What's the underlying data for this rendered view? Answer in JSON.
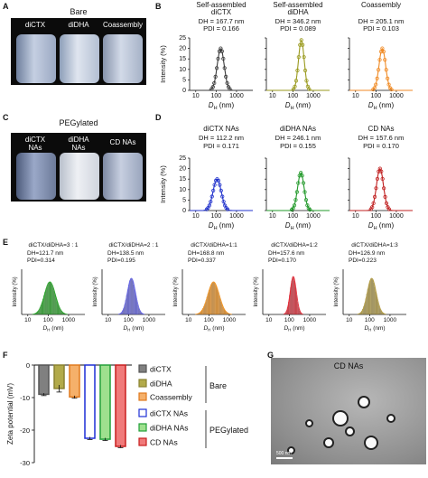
{
  "panels": {
    "A": {
      "letter": "A",
      "caption": "Bare",
      "vials": [
        "diCTX",
        "diDHA",
        "Coassembly"
      ]
    },
    "B": {
      "letter": "B",
      "xlabel_main": "D",
      "xlabel_sub": "H",
      "xlabel_unit": " (nm)",
      "ylabel": "Intensity (%)",
      "xticks": [
        "10",
        "100",
        "1000"
      ],
      "yticks": [
        "0",
        "5",
        "10",
        "15",
        "20",
        "25"
      ],
      "charts": [
        {
          "title1": "Self-assembled",
          "title2": "diCTX",
          "dh": "DH = 167.7 nm",
          "pdi": "PDI = 0.166",
          "color": "#3a3a3a",
          "peak_nm": 167.7,
          "peak_pct": 20,
          "log_sigma": 0.17
        },
        {
          "title1": "Self-assembled",
          "title2": "diDHA",
          "dh": "DH = 346.2 nm",
          "pdi": "PDI = 0.089",
          "color": "#9a9a1e",
          "peak_nm": 260,
          "peak_pct": 24,
          "log_sigma": 0.14
        },
        {
          "title1": "Coassembly",
          "title2": "",
          "dh": "DH = 205.1 nm",
          "pdi": "PDI = 0.103",
          "color": "#f08a24",
          "peak_nm": 205.1,
          "peak_pct": 20,
          "log_sigma": 0.16
        }
      ]
    },
    "C": {
      "letter": "C",
      "caption": "PEGylated",
      "vials": [
        "diCTX\nNAs",
        "diDHA\nNAs",
        "CD NAs"
      ]
    },
    "D": {
      "letter": "D",
      "xticks": [
        "10",
        "100",
        "1000"
      ],
      "yticks": [
        "0",
        "5",
        "10",
        "15",
        "20",
        "25"
      ],
      "charts": [
        {
          "title": "diCTX NAs",
          "dh": "DH = 112.2 nm",
          "pdi": "PDI = 0.171",
          "color": "#2233cc",
          "peak_nm": 112.2,
          "peak_pct": 15,
          "log_sigma": 0.2
        },
        {
          "title": "diDHA NAs",
          "dh": "DH = 246.1 nm",
          "pdi": "PDI = 0.155",
          "color": "#22992a",
          "peak_nm": 246.1,
          "peak_pct": 18,
          "log_sigma": 0.16
        },
        {
          "title": "CD NAs",
          "dh": "DH = 157.6 nm",
          "pdi": "PDI = 0.170",
          "color": "#c02020",
          "peak_nm": 157.6,
          "peak_pct": 20,
          "log_sigma": 0.17
        }
      ]
    },
    "E": {
      "letter": "E",
      "xticks": [
        "10",
        "100",
        "1000"
      ],
      "ylabel": "Intensity (%)",
      "charts": [
        {
          "title": "diCTX/diDHA=3 : 1",
          "dh": "DH=121.7 nm",
          "pdi": "PDI=0.314",
          "color": "#2eaa2e",
          "peak_nm": 121.7,
          "peak_pct": 18,
          "log_sigma": 0.27
        },
        {
          "title": "diCTX/diDHA=2 : 1",
          "dh": "DH=138.5 nm",
          "pdi": "PDI=0.195",
          "color": "#6a6ae8",
          "peak_nm": 138.5,
          "peak_pct": 20,
          "log_sigma": 0.2
        },
        {
          "title": "diCTX/diDHA=1:1",
          "dh": "DH=168.8 nm",
          "pdi": "PDI=0.337",
          "color": "#f59a2a",
          "peak_nm": 168.8,
          "peak_pct": 18,
          "log_sigma": 0.28
        },
        {
          "title": "diCTX/diDHA=1:2",
          "dh": "DH=157.6 nm",
          "pdi": "PDI=0.170",
          "color": "#e8333f",
          "peak_nm": 157.6,
          "peak_pct": 21,
          "log_sigma": 0.15
        },
        {
          "title": "diCTX/diDHA=1:3",
          "dh": "DH=126.9 nm",
          "pdi": "PDI=0.223",
          "color": "#b9a24a",
          "peak_nm": 126.9,
          "peak_pct": 20,
          "log_sigma": 0.22
        }
      ]
    },
    "F": {
      "letter": "F",
      "ylabel": "Zeta potential (mV)",
      "yticks": [
        "0",
        "-10",
        "-20",
        "-30"
      ],
      "group_labels": [
        "Bare",
        "PEGylated"
      ]
    },
    "G": {
      "letter": "G",
      "caption": "CD NAs",
      "scalebar": "500 nm"
    }
  },
  "chart_data": [
    {
      "type": "bar",
      "panel": "F",
      "ylabel": "Zeta potential (mV)",
      "ylim": [
        -30,
        0
      ],
      "legend_position": "right",
      "series": [
        {
          "name": "diCTX",
          "value": -9.0,
          "error": 0.4,
          "fill": "#808080",
          "edge": "#555555"
        },
        {
          "name": "diDHA",
          "value": -7.2,
          "error": 1.1,
          "fill": "#b2aa4a",
          "edge": "#8a8230"
        },
        {
          "name": "Coassembly",
          "value": -9.8,
          "error": 0.4,
          "fill": "#f5b06a",
          "edge": "#e07a1e"
        },
        {
          "name": "diCTX NAs",
          "value": -22.5,
          "error": 0.4,
          "fill": "#ffffff",
          "edge": "#1d2fd6"
        },
        {
          "name": "diDHA NAs",
          "value": -22.8,
          "error": 0.4,
          "fill": "#9ee08e",
          "edge": "#23a03a"
        },
        {
          "name": "CD NAs",
          "value": -25.0,
          "error": 0.4,
          "fill": "#f07a7a",
          "edge": "#c81e1e"
        }
      ]
    }
  ]
}
